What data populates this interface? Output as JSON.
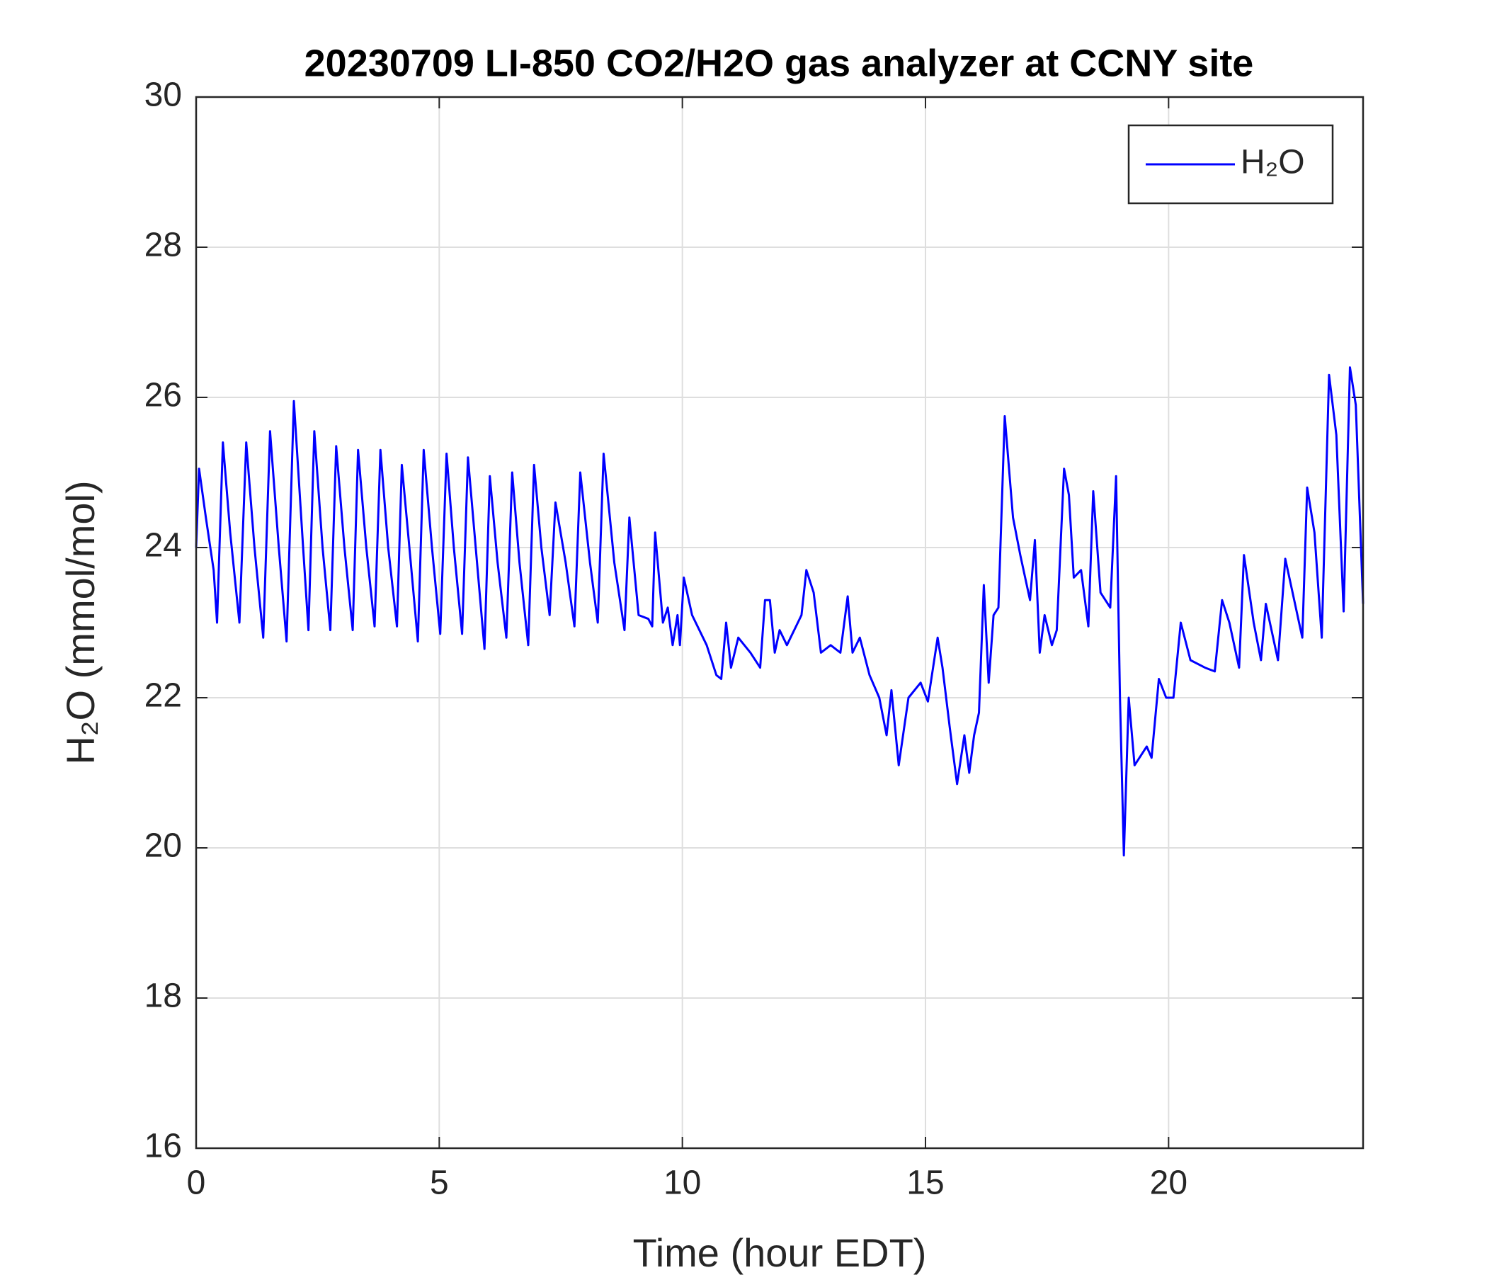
{
  "chart_data": {
    "type": "line",
    "title": "20230709 LI-850 CO2/H2O gas analyzer at CCNY site",
    "xlabel": "Time (hour EDT)",
    "ylabel": "H₂O (mmol/mol)",
    "xlim": [
      0,
      24
    ],
    "xticks": [
      0,
      5,
      10,
      15,
      20
    ],
    "ylim": [
      16,
      30
    ],
    "yticks": [
      16,
      18,
      20,
      22,
      24,
      26,
      28,
      30
    ],
    "grid": true,
    "legend": "upper right",
    "series": [
      {
        "name": "H₂O",
        "color": "#0000ff",
        "x": [
          0,
          0.06,
          0.2,
          0.36,
          0.43,
          0.55,
          0.7,
          0.89,
          1.03,
          1.2,
          1.38,
          1.52,
          1.7,
          1.86,
          2.01,
          2.2,
          2.31,
          2.43,
          2.6,
          2.76,
          2.88,
          3.05,
          3.22,
          3.33,
          3.5,
          3.67,
          3.79,
          3.95,
          4.13,
          4.23,
          4.4,
          4.56,
          4.68,
          4.85,
          5.02,
          5.15,
          5.3,
          5.47,
          5.59,
          5.75,
          5.93,
          6.04,
          6.2,
          6.38,
          6.5,
          6.65,
          6.83,
          6.95,
          7.1,
          7.27,
          7.39,
          7.6,
          7.78,
          7.9,
          8.1,
          8.26,
          8.38,
          8.6,
          8.81,
          8.91,
          9.1,
          9.3,
          9.38,
          9.44,
          9.6,
          9.7,
          9.8,
          9.9,
          9.95,
          10.03,
          10.2,
          10.5,
          10.7,
          10.8,
          10.9,
          11.0,
          11.15,
          11.4,
          11.6,
          11.7,
          11.8,
          11.9,
          12.0,
          12.15,
          12.3,
          12.45,
          12.55,
          12.7,
          12.85,
          13.05,
          13.25,
          13.4,
          13.5,
          13.65,
          13.85,
          14.05,
          14.2,
          14.3,
          14.45,
          14.65,
          14.9,
          15.05,
          15.25,
          15.35,
          15.5,
          15.65,
          15.8,
          15.9,
          16.0,
          16.1,
          16.2,
          16.3,
          16.4,
          16.5,
          16.63,
          16.8,
          16.95,
          17.15,
          17.25,
          17.35,
          17.45,
          17.6,
          17.7,
          17.85,
          17.95,
          18.05,
          18.2,
          18.35,
          18.45,
          18.6,
          18.8,
          18.92,
          19.0,
          19.08,
          19.18,
          19.3,
          19.55,
          19.65,
          19.8,
          19.95,
          20.1,
          20.25,
          20.45,
          20.75,
          20.95,
          21.1,
          21.25,
          21.45,
          21.55,
          21.75,
          21.9,
          22.0,
          22.25,
          22.4,
          22.55,
          22.75,
          22.85,
          23.0,
          23.15,
          23.3,
          23.45,
          23.6,
          23.73,
          23.85,
          24.0
        ],
        "values": [
          24.0,
          25.05,
          24.4,
          23.7,
          23.0,
          25.4,
          24.2,
          23.0,
          25.4,
          24.0,
          22.8,
          25.55,
          24.0,
          22.75,
          25.95,
          24.0,
          22.9,
          25.55,
          24.0,
          22.9,
          25.35,
          24.0,
          22.9,
          25.3,
          24.0,
          22.95,
          25.3,
          24.0,
          22.95,
          25.1,
          23.9,
          22.75,
          25.3,
          24.0,
          22.85,
          25.25,
          24.0,
          22.85,
          25.2,
          24.0,
          22.65,
          24.95,
          23.8,
          22.8,
          25.0,
          23.8,
          22.7,
          25.1,
          24.0,
          23.1,
          24.6,
          23.8,
          22.95,
          25.0,
          23.8,
          23.0,
          25.25,
          23.8,
          22.9,
          24.4,
          23.1,
          23.05,
          22.95,
          24.2,
          23.0,
          23.2,
          22.7,
          23.1,
          22.7,
          23.6,
          23.1,
          22.7,
          22.3,
          22.25,
          23.0,
          22.4,
          22.8,
          22.6,
          22.4,
          23.3,
          23.3,
          22.6,
          22.9,
          22.7,
          22.9,
          23.1,
          23.7,
          23.4,
          22.6,
          22.7,
          22.6,
          23.35,
          22.6,
          22.8,
          22.3,
          22.0,
          21.5,
          22.1,
          21.1,
          22.0,
          22.2,
          21.95,
          22.8,
          22.4,
          21.6,
          20.85,
          21.5,
          21.0,
          21.5,
          21.8,
          23.5,
          22.2,
          23.1,
          23.2,
          25.75,
          24.4,
          23.9,
          23.3,
          24.1,
          22.6,
          23.1,
          22.7,
          22.9,
          25.05,
          24.7,
          23.6,
          23.7,
          22.95,
          24.75,
          23.4,
          23.2,
          24.95,
          22.0,
          19.9,
          22.0,
          21.1,
          21.35,
          21.2,
          22.25,
          22.0,
          22.0,
          23.0,
          22.5,
          22.4,
          22.35,
          23.3,
          23.0,
          22.4,
          23.9,
          23.0,
          22.5,
          23.25,
          22.5,
          23.85,
          23.4,
          22.8,
          24.8,
          24.2,
          22.8,
          26.3,
          25.5,
          23.15,
          26.4,
          25.9,
          23.25
        ]
      }
    ]
  }
}
